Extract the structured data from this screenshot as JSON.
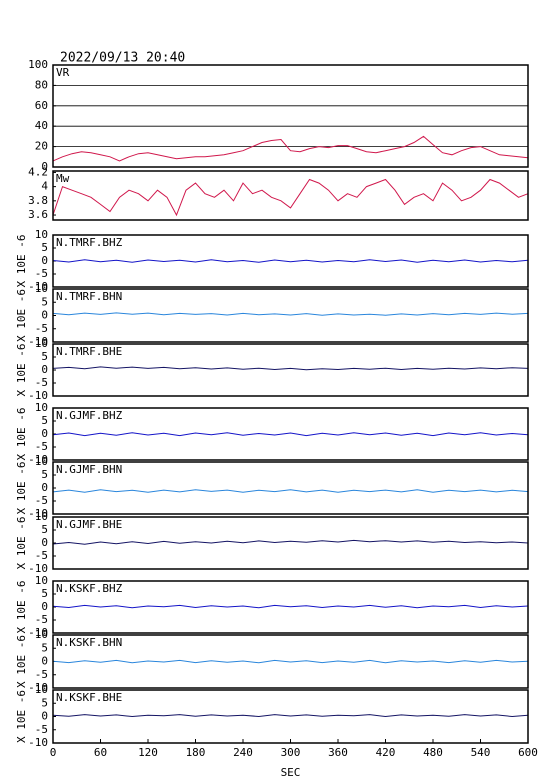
{
  "chart_data": [
    {
      "type": "line",
      "title": "2022/09/13 20:40",
      "label": "VR",
      "color": "#d0184c",
      "grid": true,
      "xlim": [
        0,
        600
      ],
      "ylim": [
        0,
        100
      ],
      "yticks": [
        0,
        20,
        40,
        60,
        80,
        100
      ],
      "x": [
        0,
        12,
        24,
        36,
        48,
        60,
        72,
        84,
        96,
        108,
        120,
        132,
        144,
        156,
        168,
        180,
        192,
        204,
        216,
        228,
        240,
        252,
        264,
        276,
        288,
        300,
        312,
        324,
        336,
        348,
        360,
        372,
        384,
        396,
        408,
        420,
        432,
        444,
        456,
        468,
        480,
        492,
        504,
        516,
        528,
        540,
        552,
        564,
        576,
        588,
        600
      ],
      "values": [
        6,
        10,
        13,
        15,
        14,
        12,
        10,
        6,
        10,
        13,
        14,
        12,
        10,
        8,
        9,
        10,
        10,
        11,
        12,
        14,
        16,
        20,
        24,
        26,
        27,
        16,
        15,
        18,
        20,
        19,
        21,
        21,
        18,
        15,
        14,
        16,
        18,
        20,
        24,
        30,
        22,
        14,
        12,
        16,
        19,
        20,
        16,
        12,
        11,
        10,
        9
      ]
    },
    {
      "type": "line",
      "label": "Mw",
      "color": "#d0184c",
      "xlim": [
        0,
        600
      ],
      "ylim": [
        3.53,
        4.22
      ],
      "yticks": [
        3.6,
        3.8,
        4.0,
        4.2
      ],
      "x": [
        0,
        12,
        24,
        36,
        48,
        60,
        72,
        84,
        96,
        108,
        120,
        132,
        144,
        156,
        168,
        180,
        192,
        204,
        216,
        228,
        240,
        252,
        264,
        276,
        288,
        300,
        312,
        324,
        336,
        348,
        360,
        372,
        384,
        396,
        408,
        420,
        432,
        444,
        456,
        468,
        480,
        492,
        504,
        516,
        528,
        540,
        552,
        564,
        576,
        588,
        600
      ],
      "values": [
        3.6,
        4.0,
        3.95,
        3.9,
        3.85,
        3.75,
        3.65,
        3.85,
        3.95,
        3.9,
        3.8,
        3.95,
        3.85,
        3.6,
        3.95,
        4.05,
        3.9,
        3.85,
        3.95,
        3.8,
        4.05,
        3.9,
        3.95,
        3.85,
        3.8,
        3.7,
        3.9,
        4.1,
        4.05,
        3.95,
        3.8,
        3.9,
        3.85,
        4.0,
        4.05,
        4.1,
        3.95,
        3.75,
        3.85,
        3.9,
        3.8,
        4.05,
        3.95,
        3.8,
        3.85,
        3.95,
        4.1,
        4.05,
        3.95,
        3.85,
        3.9
      ]
    },
    {
      "type": "line",
      "label": "N.TMRF.BHZ",
      "ylabel": "X 10E -6",
      "color": "#1414c8",
      "xlim": [
        0,
        600
      ],
      "ylim": [
        -10,
        10
      ],
      "yticks": [
        -10,
        -5,
        0,
        5,
        10
      ],
      "x": [
        0,
        20,
        40,
        60,
        80,
        100,
        120,
        140,
        160,
        180,
        200,
        220,
        240,
        260,
        280,
        300,
        320,
        340,
        360,
        380,
        400,
        420,
        440,
        460,
        480,
        500,
        520,
        540,
        560,
        580,
        600
      ],
      "values": [
        0.2,
        -0.4,
        0.5,
        -0.3,
        0.3,
        -0.5,
        0.4,
        -0.2,
        0.3,
        -0.4,
        0.5,
        -0.3,
        0.2,
        -0.5,
        0.4,
        -0.3,
        0.3,
        -0.4,
        0.2,
        -0.3,
        0.5,
        -0.2,
        0.4,
        -0.5,
        0.3,
        -0.3,
        0.4,
        -0.4,
        0.2,
        -0.3,
        0.3
      ]
    },
    {
      "type": "line",
      "label": "N.TMRF.BHN",
      "ylabel": "X 10E -6",
      "color": "#2a86dc",
      "xlim": [
        0,
        600
      ],
      "ylim": [
        -10,
        10
      ],
      "yticks": [
        -10,
        -5,
        0,
        5,
        10
      ],
      "x": [
        0,
        20,
        40,
        60,
        80,
        100,
        120,
        140,
        160,
        180,
        200,
        220,
        240,
        260,
        280,
        300,
        320,
        340,
        360,
        380,
        400,
        420,
        440,
        460,
        480,
        500,
        520,
        540,
        560,
        580,
        600
      ],
      "values": [
        0.8,
        0.3,
        0.9,
        0.4,
        1.0,
        0.5,
        0.9,
        0.3,
        0.8,
        0.4,
        0.7,
        0.2,
        0.8,
        0.3,
        0.6,
        0.2,
        0.7,
        0.1,
        0.6,
        0.2,
        0.5,
        0.1,
        0.6,
        0.2,
        0.7,
        0.3,
        0.8,
        0.4,
        0.9,
        0.5,
        0.8
      ]
    },
    {
      "type": "line",
      "label": "N.TMRF.BHE",
      "ylabel": "X 10E -6",
      "color": "#141464",
      "xlim": [
        0,
        600
      ],
      "ylim": [
        -10,
        10
      ],
      "yticks": [
        -10,
        -5,
        0,
        5,
        10
      ],
      "x": [
        0,
        20,
        40,
        60,
        80,
        100,
        120,
        140,
        160,
        180,
        200,
        220,
        240,
        260,
        280,
        300,
        320,
        340,
        360,
        380,
        400,
        420,
        440,
        460,
        480,
        500,
        520,
        540,
        560,
        580,
        600
      ],
      "values": [
        0.6,
        1.0,
        0.5,
        1.2,
        0.7,
        1.1,
        0.6,
        1.0,
        0.5,
        0.9,
        0.4,
        0.8,
        0.3,
        0.7,
        0.2,
        0.6,
        0.1,
        0.5,
        0.2,
        0.6,
        0.3,
        0.7,
        0.2,
        0.6,
        0.3,
        0.7,
        0.4,
        0.8,
        0.5,
        0.9,
        0.6
      ]
    },
    {
      "type": "line",
      "label": "N.GJMF.BHZ",
      "ylabel": "X 10E -6",
      "color": "#1414c8",
      "xlim": [
        0,
        600
      ],
      "ylim": [
        -10,
        10
      ],
      "yticks": [
        -10,
        -5,
        0,
        5,
        10
      ],
      "x": [
        0,
        20,
        40,
        60,
        80,
        100,
        120,
        140,
        160,
        180,
        200,
        220,
        240,
        260,
        280,
        300,
        320,
        340,
        360,
        380,
        400,
        420,
        440,
        460,
        480,
        500,
        520,
        540,
        560,
        580,
        600
      ],
      "values": [
        -0.3,
        0.4,
        -0.6,
        0.3,
        -0.5,
        0.5,
        -0.4,
        0.3,
        -0.6,
        0.4,
        -0.3,
        0.5,
        -0.5,
        0.2,
        -0.4,
        0.4,
        -0.6,
        0.3,
        -0.4,
        0.5,
        -0.3,
        0.4,
        -0.5,
        0.3,
        -0.6,
        0.4,
        -0.3,
        0.5,
        -0.4,
        0.2,
        -0.3
      ]
    },
    {
      "type": "line",
      "label": "N.GJMF.BHN",
      "ylabel": "X 10E -6",
      "color": "#2a86dc",
      "xlim": [
        0,
        600
      ],
      "ylim": [
        -10,
        10
      ],
      "yticks": [
        -10,
        -5,
        0,
        5,
        10
      ],
      "x": [
        0,
        20,
        40,
        60,
        80,
        100,
        120,
        140,
        160,
        180,
        200,
        220,
        240,
        260,
        280,
        300,
        320,
        340,
        360,
        380,
        400,
        420,
        440,
        460,
        480,
        500,
        520,
        540,
        560,
        580,
        600
      ],
      "values": [
        -1.5,
        -0.8,
        -1.6,
        -0.7,
        -1.4,
        -0.9,
        -1.6,
        -0.8,
        -1.5,
        -0.7,
        -1.3,
        -0.8,
        -1.6,
        -0.9,
        -1.4,
        -0.7,
        -1.5,
        -0.8,
        -1.6,
        -0.9,
        -1.4,
        -0.8,
        -1.5,
        -0.7,
        -1.6,
        -0.9,
        -1.4,
        -0.8,
        -1.5,
        -0.9,
        -1.4
      ]
    },
    {
      "type": "line",
      "label": "N.GJMF.BHE",
      "ylabel": "X 10E -6",
      "color": "#141464",
      "xlim": [
        0,
        600
      ],
      "ylim": [
        -10,
        10
      ],
      "yticks": [
        -10,
        -5,
        0,
        5,
        10
      ],
      "x": [
        0,
        20,
        40,
        60,
        80,
        100,
        120,
        140,
        160,
        180,
        200,
        220,
        240,
        260,
        280,
        300,
        320,
        340,
        360,
        380,
        400,
        420,
        440,
        460,
        480,
        500,
        520,
        540,
        560,
        580,
        600
      ],
      "values": [
        -0.4,
        0.2,
        -0.5,
        0.4,
        -0.3,
        0.5,
        -0.2,
        0.6,
        -0.1,
        0.5,
        0.0,
        0.7,
        0.1,
        0.8,
        0.2,
        0.7,
        0.3,
        0.9,
        0.4,
        1.0,
        0.5,
        0.9,
        0.4,
        0.8,
        0.3,
        0.7,
        0.2,
        0.5,
        0.1,
        0.4,
        0.0
      ]
    },
    {
      "type": "line",
      "label": "N.KSKF.BHZ",
      "ylabel": "X 10E -6",
      "color": "#1414c8",
      "xlim": [
        0,
        600
      ],
      "ylim": [
        -10,
        10
      ],
      "yticks": [
        -10,
        -5,
        0,
        5,
        10
      ],
      "x": [
        0,
        20,
        40,
        60,
        80,
        100,
        120,
        140,
        160,
        180,
        200,
        220,
        240,
        260,
        280,
        300,
        320,
        340,
        360,
        380,
        400,
        420,
        440,
        460,
        480,
        500,
        520,
        540,
        560,
        580,
        600
      ],
      "values": [
        0.3,
        -0.2,
        0.6,
        0.0,
        0.5,
        -0.3,
        0.4,
        0.1,
        0.6,
        -0.2,
        0.5,
        0.0,
        0.4,
        -0.3,
        0.6,
        0.1,
        0.5,
        -0.2,
        0.4,
        0.0,
        0.6,
        -0.1,
        0.5,
        -0.3,
        0.4,
        0.1,
        0.6,
        -0.2,
        0.5,
        0.0,
        0.4
      ]
    },
    {
      "type": "line",
      "label": "N.KSKF.BHN",
      "ylabel": "X 10E -6",
      "color": "#2a86dc",
      "xlim": [
        0,
        600
      ],
      "ylim": [
        -10,
        10
      ],
      "yticks": [
        -10,
        -5,
        0,
        5,
        10
      ],
      "x": [
        0,
        20,
        40,
        60,
        80,
        100,
        120,
        140,
        160,
        180,
        200,
        220,
        240,
        260,
        280,
        300,
        320,
        340,
        360,
        380,
        400,
        420,
        440,
        460,
        480,
        500,
        520,
        540,
        560,
        580,
        600
      ],
      "values": [
        0.1,
        -0.4,
        0.3,
        -0.3,
        0.4,
        -0.5,
        0.2,
        -0.2,
        0.4,
        -0.4,
        0.3,
        -0.3,
        0.2,
        -0.5,
        0.4,
        -0.2,
        0.3,
        -0.4,
        0.2,
        -0.3,
        0.4,
        -0.5,
        0.3,
        -0.2,
        0.2,
        -0.4,
        0.3,
        -0.3,
        0.4,
        -0.2,
        0.1
      ]
    },
    {
      "type": "line",
      "label": "N.KSKF.BHE",
      "ylabel": "X 10E -6",
      "color": "#141464",
      "xlim": [
        0,
        600
      ],
      "ylim": [
        -10,
        10
      ],
      "yticks": [
        -10,
        -5,
        0,
        5,
        10
      ],
      "xlabel": "SEC",
      "xticks": [
        0,
        60,
        120,
        180,
        240,
        300,
        360,
        420,
        480,
        540,
        600
      ],
      "x": [
        0,
        20,
        40,
        60,
        80,
        100,
        120,
        140,
        160,
        180,
        200,
        220,
        240,
        260,
        280,
        300,
        320,
        340,
        360,
        380,
        400,
        420,
        440,
        460,
        480,
        500,
        520,
        540,
        560,
        580,
        600
      ],
      "values": [
        0.5,
        0.1,
        0.7,
        0.2,
        0.6,
        0.0,
        0.5,
        0.3,
        0.7,
        0.1,
        0.6,
        0.2,
        0.5,
        0.0,
        0.7,
        0.2,
        0.6,
        0.1,
        0.5,
        0.3,
        0.7,
        0.0,
        0.6,
        0.2,
        0.5,
        0.1,
        0.7,
        0.2,
        0.6,
        0.0,
        0.5
      ]
    }
  ]
}
